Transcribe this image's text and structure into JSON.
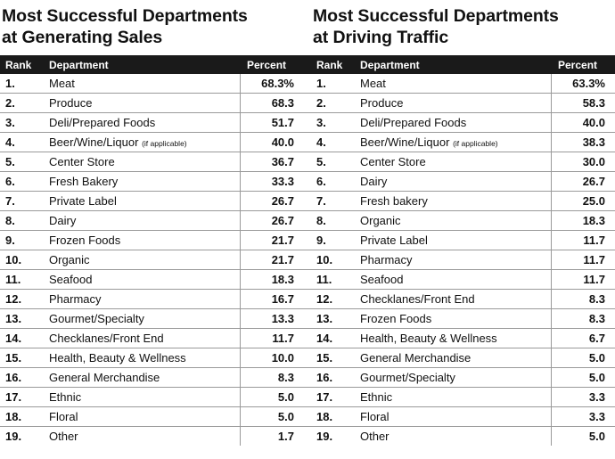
{
  "left": {
    "title_line1": "Most Successful Departments",
    "title_line2": "at Generating Sales",
    "headers": {
      "rank": "Rank",
      "department": "Department",
      "percent": "Percent"
    },
    "rows": [
      {
        "rank": "1.",
        "department": "Meat",
        "percent": "68.3%"
      },
      {
        "rank": "2.",
        "department": "Produce",
        "percent": "68.3"
      },
      {
        "rank": "3.",
        "department": "Deli/Prepared Foods",
        "percent": "51.7"
      },
      {
        "rank": "4.",
        "department": "Beer/Wine/Liquor",
        "note": "(if applicable)",
        "percent": "40.0"
      },
      {
        "rank": "5.",
        "department": "Center Store",
        "percent": "36.7"
      },
      {
        "rank": "6.",
        "department": "Fresh Bakery",
        "percent": "33.3"
      },
      {
        "rank": "7.",
        "department": "Private Label",
        "percent": "26.7"
      },
      {
        "rank": "8.",
        "department": "Dairy",
        "percent": "26.7"
      },
      {
        "rank": "9.",
        "department": "Frozen Foods",
        "percent": "21.7"
      },
      {
        "rank": "10.",
        "department": "Organic",
        "percent": "21.7"
      },
      {
        "rank": "11.",
        "department": "Seafood",
        "percent": "18.3"
      },
      {
        "rank": "12.",
        "department": "Pharmacy",
        "percent": "16.7"
      },
      {
        "rank": "13.",
        "department": "Gourmet/Specialty",
        "percent": "13.3"
      },
      {
        "rank": "14.",
        "department": "Checklanes/Front End",
        "percent": "11.7"
      },
      {
        "rank": "15.",
        "department": "Health, Beauty & Wellness",
        "percent": "10.0"
      },
      {
        "rank": "16.",
        "department": "General Merchandise",
        "percent": "8.3"
      },
      {
        "rank": "17.",
        "department": "Ethnic",
        "percent": "5.0"
      },
      {
        "rank": "18.",
        "department": "Floral",
        "percent": "5.0"
      },
      {
        "rank": "19.",
        "department": "Other",
        "percent": "1.7"
      }
    ]
  },
  "right": {
    "title_line1": "Most Successful Departments",
    "title_line2": "at Driving Traffic",
    "headers": {
      "rank": "Rank",
      "department": "Department",
      "percent": "Percent"
    },
    "rows": [
      {
        "rank": "1.",
        "department": "Meat",
        "percent": "63.3%"
      },
      {
        "rank": "2.",
        "department": "Produce",
        "percent": "58.3"
      },
      {
        "rank": "3.",
        "department": "Deli/Prepared Foods",
        "percent": "40.0"
      },
      {
        "rank": "4.",
        "department": "Beer/Wine/Liquor",
        "note": "(if applicable)",
        "percent": "38.3"
      },
      {
        "rank": "5.",
        "department": "Center Store",
        "percent": "30.0"
      },
      {
        "rank": "6.",
        "department": "Dairy",
        "percent": "26.7"
      },
      {
        "rank": "7.",
        "department": "Fresh bakery",
        "percent": "25.0"
      },
      {
        "rank": "8.",
        "department": "Organic",
        "percent": "18.3"
      },
      {
        "rank": "9.",
        "department": "Private Label",
        "percent": "11.7"
      },
      {
        "rank": "10.",
        "department": "Pharmacy",
        "percent": "11.7"
      },
      {
        "rank": "11.",
        "department": "Seafood",
        "percent": "11.7"
      },
      {
        "rank": "12.",
        "department": "Checklanes/Front End",
        "percent": "8.3"
      },
      {
        "rank": "13.",
        "department": "Frozen Foods",
        "percent": "8.3"
      },
      {
        "rank": "14.",
        "department": "Health, Beauty & Wellness",
        "percent": "6.7"
      },
      {
        "rank": "15.",
        "department": "General Merchandise",
        "percent": "5.0"
      },
      {
        "rank": "16.",
        "department": "Gourmet/Specialty",
        "percent": "5.0"
      },
      {
        "rank": "17.",
        "department": "Ethnic",
        "percent": "3.3"
      },
      {
        "rank": "18.",
        "department": "Floral",
        "percent": "3.3"
      },
      {
        "rank": "19.",
        "department": "Other",
        "percent": "5.0"
      }
    ]
  }
}
